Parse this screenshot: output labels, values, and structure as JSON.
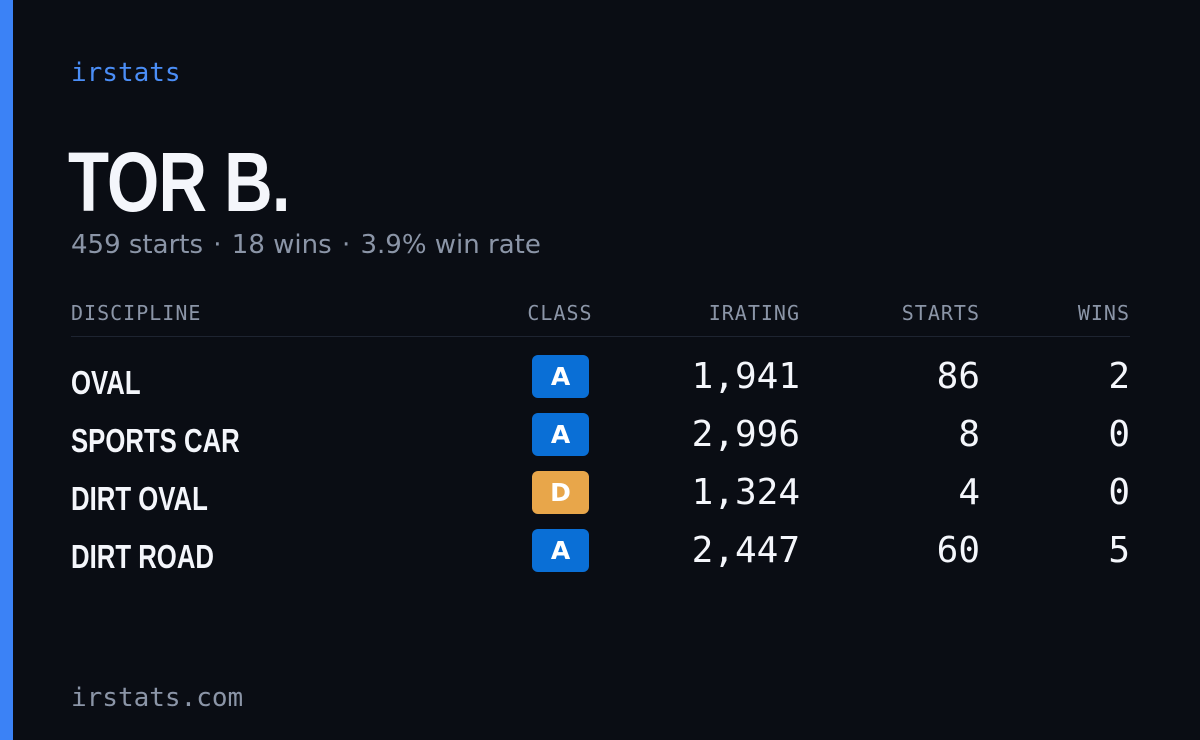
{
  "brand": {
    "name": "irstats",
    "domain": "irstats.com",
    "accent_color": "#3b82f6"
  },
  "driver": {
    "name": "TOR B.",
    "starts_text": "459 starts",
    "wins_text": "18 wins",
    "win_rate_text": "3.9% win rate",
    "separator": "·"
  },
  "table": {
    "headers": {
      "discipline": "DISCIPLINE",
      "class": "CLASS",
      "irating": "IRATING",
      "starts": "STARTS",
      "wins": "WINS"
    },
    "rows": [
      {
        "discipline": "OVAL",
        "class": "A",
        "class_color": "#0a6fd6",
        "irating": "1,941",
        "starts": "86",
        "wins": "2"
      },
      {
        "discipline": "SPORTS CAR",
        "class": "A",
        "class_color": "#0a6fd6",
        "irating": "2,996",
        "starts": "8",
        "wins": "0"
      },
      {
        "discipline": "DIRT OVAL",
        "class": "D",
        "class_color": "#e8a64a",
        "irating": "1,324",
        "starts": "4",
        "wins": "0"
      },
      {
        "discipline": "DIRT ROAD",
        "class": "A",
        "class_color": "#0a6fd6",
        "irating": "2,447",
        "starts": "60",
        "wins": "5"
      }
    ]
  }
}
